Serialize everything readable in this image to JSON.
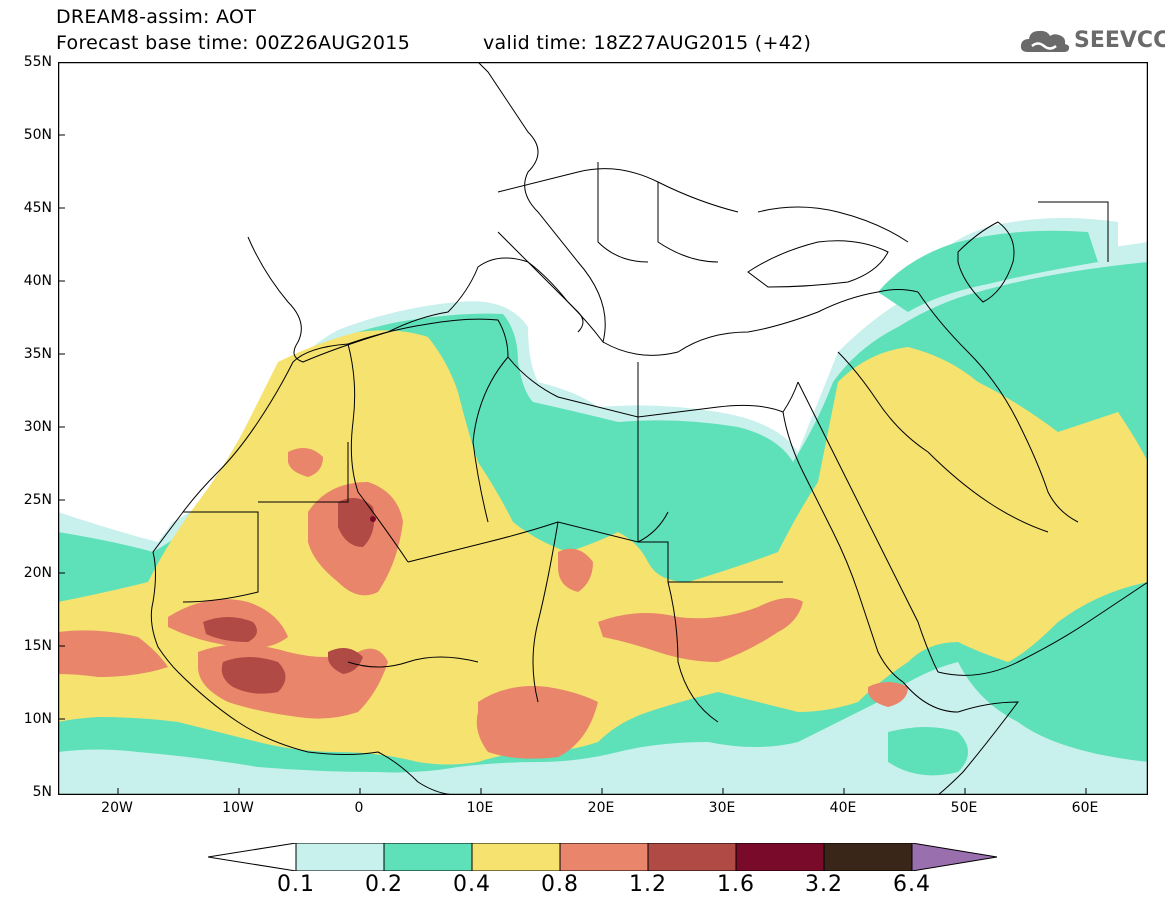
{
  "header": {
    "line1": "DREAM8-assim: AOT",
    "line2": "Forecast base time: 00Z26AUG2015",
    "valid": "valid time: 18Z27AUG2015 (+42)"
  },
  "logo": {
    "text": "SEEVCCC",
    "icon": "cloud-icon"
  },
  "map": {
    "lat_labels": [
      "55N",
      "50N",
      "45N",
      "40N",
      "35N",
      "30N",
      "25N",
      "20N",
      "15N",
      "10N",
      "5N"
    ],
    "lon_labels": [
      "20W",
      "10W",
      "0",
      "10E",
      "20E",
      "30E",
      "40E",
      "50E",
      "60E"
    ],
    "colorbar_labels": [
      "0.1",
      "0.2",
      "0.4",
      "0.8",
      "1.2",
      "1.6",
      "3.2",
      "6.4"
    ],
    "colors": {
      "l1": "#c8f0ec",
      "l2": "#5ee0b8",
      "l3": "#f5e26f",
      "l4": "#e8856a",
      "l5": "#b04a44",
      "l6": "#7a0a2a",
      "l7": "#3a2618",
      "l8": "#9a6fae"
    }
  }
}
